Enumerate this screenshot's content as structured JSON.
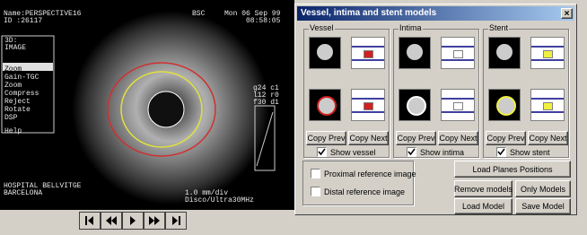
{
  "image": {
    "info": [
      "Name:PERSPECTIVE16",
      "ID  :26117"
    ],
    "header": [
      "BSC",
      "Mon 06 Sep 99",
      "08:58:05"
    ],
    "menu": [
      "3D:",
      "IMAGE",
      "Zoom",
      "Gain-TGC",
      "Zoom",
      "Compress",
      "Reject",
      "Rotate",
      "DSP",
      "Help"
    ],
    "params": [
      "g24 c1",
      "l12 r0",
      "f30 d1"
    ],
    "footer_left": [
      "HOSPITAL BELLVITGE",
      "BARCELONA"
    ],
    "footer_right": [
      "1.0 mm/div",
      "Disco/Ultra30MHz"
    ]
  },
  "dialog": {
    "title": "Vessel, intima and stent models",
    "close": "×",
    "groups": [
      {
        "label": "Vessel",
        "copy_prev": "Copy Prev",
        "copy_next": "Copy Next",
        "checkbox": "Show vessel"
      },
      {
        "label": "Intima",
        "copy_prev": "Copy Prev",
        "copy_next": "Copy Next",
        "checkbox": "Show intima"
      },
      {
        "label": "Stent",
        "copy_prev": "Copy Prev",
        "copy_next": "Copy Next",
        "checkbox": "Show stent"
      }
    ],
    "options": [
      "Proximal reference image",
      "Distal reference image"
    ],
    "buttons": {
      "load_planes": "Load Planes Positions",
      "remove_models": "Remove models",
      "only_models": "Only Models",
      "load_model": "Load Model",
      "save_model": "Save Model"
    }
  }
}
